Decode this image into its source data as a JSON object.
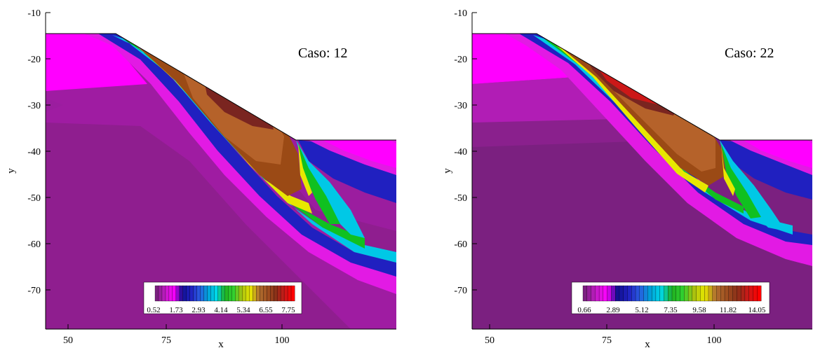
{
  "figure": {
    "panels": [
      {
        "title": "Caso: 12",
        "xlabel": "x",
        "ylabel": "y",
        "colorbar_ticks": [
          "0.52",
          "1.73",
          "2.93",
          "4.14",
          "5.34",
          "6.55",
          "7.75"
        ]
      },
      {
        "title": "Caso: 22",
        "xlabel": "x",
        "ylabel": "y",
        "colorbar_ticks": [
          "0.66",
          "2.89",
          "5.12",
          "7.35",
          "9.58",
          "11.82",
          "14.05"
        ]
      }
    ]
  },
  "chart_data": [
    {
      "type": "heatmap",
      "title": "Caso: 12",
      "xlabel": "x",
      "ylabel": "y",
      "xlim": [
        45,
        120
      ],
      "ylim": [
        -79,
        -10
      ],
      "x_ticks": [
        50,
        75,
        100
      ],
      "y_ticks": [
        -10,
        -20,
        -30,
        -40,
        -50,
        -60,
        -70
      ],
      "value_range": [
        0.52,
        7.75
      ],
      "colorbar_ticks": [
        0.52,
        1.73,
        2.93,
        4.14,
        5.34,
        6.55,
        7.75
      ],
      "slope_profile": [
        [
          45,
          -15
        ],
        [
          60,
          -15
        ],
        [
          98,
          -37.5
        ],
        [
          120,
          -37.5
        ]
      ],
      "colors": {
        "low": "#ff00ff",
        "background": "#8b1a8b",
        "high": "#8b0000"
      }
    },
    {
      "type": "heatmap",
      "title": "Caso: 22",
      "xlabel": "x",
      "ylabel": "y",
      "xlim": [
        45,
        120
      ],
      "ylim": [
        -79,
        -10
      ],
      "x_ticks": [
        50,
        75,
        100
      ],
      "y_ticks": [
        -10,
        -20,
        -30,
        -40,
        -50,
        -60,
        -70
      ],
      "value_range": [
        0.66,
        14.05
      ],
      "colorbar_ticks": [
        0.66,
        2.89,
        5.12,
        7.35,
        9.58,
        11.82,
        14.05
      ],
      "slope_profile": [
        [
          45,
          -15
        ],
        [
          60,
          -15
        ],
        [
          98,
          -37.5
        ],
        [
          120,
          -37.5
        ]
      ],
      "colors": {
        "low": "#ff00ff",
        "background": "#7b2080",
        "high": "#ff0000"
      }
    }
  ]
}
